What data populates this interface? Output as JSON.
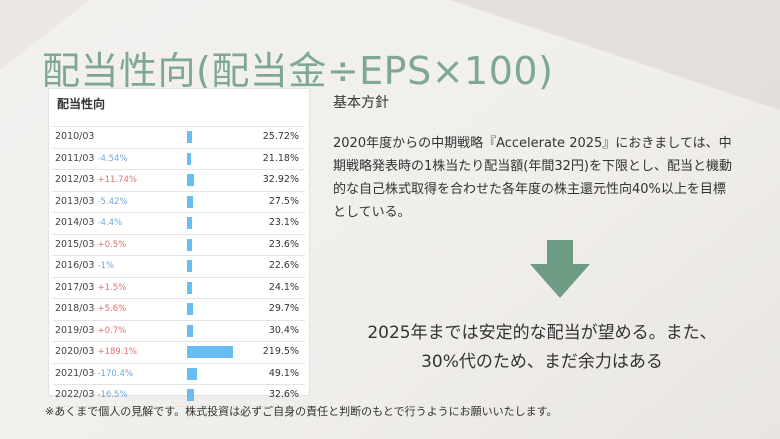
{
  "slide": {
    "title": "配当性向(配当金÷EPS×100)",
    "table": {
      "heading": "配当性向",
      "rows": [
        {
          "year": "2010/03",
          "change": "",
          "dir": "",
          "payout": 25.72,
          "label": "25.72%"
        },
        {
          "year": "2011/03",
          "change": "-4.54%",
          "dir": "down",
          "payout": 21.18,
          "label": "21.18%"
        },
        {
          "year": "2012/03",
          "change": "+11.74%",
          "dir": "up",
          "payout": 32.92,
          "label": "32.92%"
        },
        {
          "year": "2013/03",
          "change": "-5.42%",
          "dir": "down",
          "payout": 27.5,
          "label": "27.5%"
        },
        {
          "year": "2014/03",
          "change": "-4.4%",
          "dir": "down",
          "payout": 23.1,
          "label": "23.1%"
        },
        {
          "year": "2015/03",
          "change": "+0.5%",
          "dir": "up",
          "payout": 23.6,
          "label": "23.6%"
        },
        {
          "year": "2016/03",
          "change": "-1%",
          "dir": "down",
          "payout": 22.6,
          "label": "22.6%"
        },
        {
          "year": "2017/03",
          "change": "+1.5%",
          "dir": "up",
          "payout": 24.1,
          "label": "24.1%"
        },
        {
          "year": "2018/03",
          "change": "+5.6%",
          "dir": "up",
          "payout": 29.7,
          "label": "29.7%"
        },
        {
          "year": "2019/03",
          "change": "+0.7%",
          "dir": "up",
          "payout": 30.4,
          "label": "30.4%"
        },
        {
          "year": "2020/03",
          "change": "+189.1%",
          "dir": "up",
          "payout": 219.5,
          "label": "219.5%"
        },
        {
          "year": "2021/03",
          "change": "-170.4%",
          "dir": "down",
          "payout": 49.1,
          "label": "49.1%"
        },
        {
          "year": "2022/03",
          "change": "-16.5%",
          "dir": "down",
          "payout": 32.6,
          "label": "32.6%"
        }
      ]
    },
    "policy_heading": "基本方針",
    "policy_body": "2020年度からの中期戦略『Accelerate 2025』におきましては、中期戦略発表時の1株当たり配当額(年間32円)を下限とし、配当と機動的な自己株式取得を合わせた各年度の株主還元性向40%以上を目標としている。",
    "conclusion_line1": "2025年までは安定的な配当が望める。また、",
    "conclusion_line2": "30%代のため、まだ余力はある",
    "disclaimer": "※あくまで個人の見解です。株式投資は必ずご自身の責任と判断のもとで行うようにお願いいたします。"
  },
  "colors": {
    "title": "#7ea892",
    "arrow": "#6e9b84",
    "bar": "#66bff0",
    "change_up": "#e07070",
    "change_down": "#6fa6de"
  }
}
